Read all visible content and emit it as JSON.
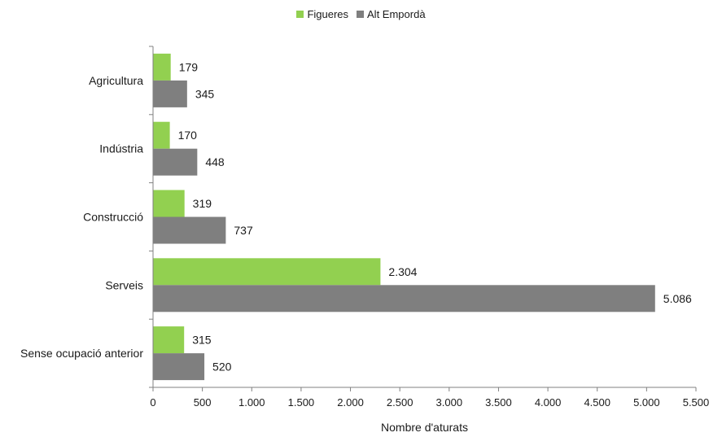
{
  "chart_data": {
    "type": "bar",
    "orientation": "horizontal",
    "categories": [
      "Agricultura",
      "Indústria",
      "Construcció",
      "Serveis",
      "Sense ocupació anterior"
    ],
    "series": [
      {
        "name": "Figueres",
        "color": "#92d050",
        "values": [
          179,
          170,
          319,
          2304,
          315
        ],
        "labels": [
          "179",
          "170",
          "319",
          "2.304",
          "315"
        ]
      },
      {
        "name": "Alt Empordà",
        "color": "#7f7f7f",
        "values": [
          345,
          448,
          737,
          5086,
          520
        ],
        "labels": [
          "345",
          "448",
          "737",
          "5.086",
          "520"
        ]
      }
    ],
    "xlabel": "Nombre d'aturats",
    "ylabel": "",
    "xlim": [
      0,
      5500
    ],
    "xticks": [
      0,
      500,
      1000,
      1500,
      2000,
      2500,
      3000,
      3500,
      4000,
      4500,
      5000,
      5500
    ],
    "xtick_labels": [
      "0",
      "500",
      "1.000",
      "1.500",
      "2.000",
      "2.500",
      "3.000",
      "3.500",
      "4.000",
      "4.500",
      "5.000",
      "5.500"
    ],
    "grid": false,
    "legend_position": "top-center"
  }
}
